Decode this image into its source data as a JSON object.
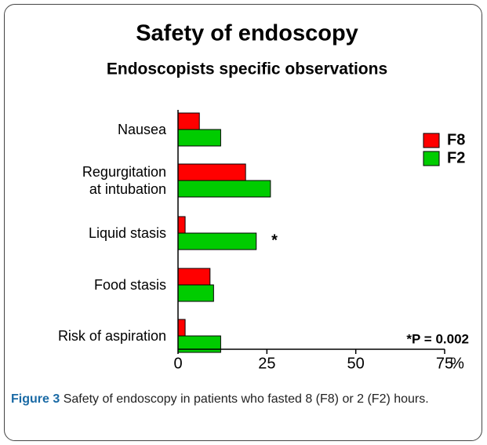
{
  "chart_data": {
    "type": "hbar",
    "title": "Safety of endoscopy",
    "subtitle": "Endoscopists specific observations",
    "xlabel": "%",
    "categories": [
      "Nausea",
      "Regurgitation\nat intubation",
      "Liquid stasis",
      "Food stasis",
      "Risk of aspiration"
    ],
    "series": [
      {
        "name": "F8",
        "color": "#ff0000",
        "values": [
          6,
          19,
          2,
          9,
          2
        ]
      },
      {
        "name": "F2",
        "color": "#00cc00",
        "values": [
          12,
          26,
          22,
          10,
          12
        ]
      }
    ],
    "xlim": [
      0,
      75
    ],
    "xticks": [
      0,
      25,
      50,
      75
    ],
    "annotations": [
      "*",
      "*P = 0.002"
    ],
    "caption_label": "Figure 3",
    "caption": "Safety of endoscopy in patients who fasted 8 (F8) or 2 (F2) hours."
  }
}
